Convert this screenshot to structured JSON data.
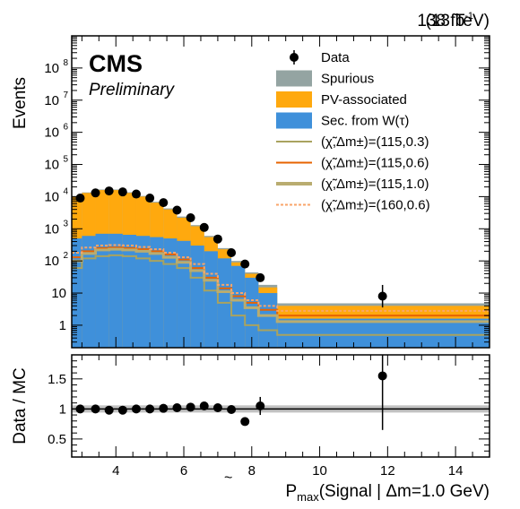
{
  "chart_data": [
    {
      "type": "histogram",
      "panel": "main",
      "header": {
        "lumi": "138 fb",
        "lumi_sup": "-1",
        "energy": "(13 TeV)",
        "experiment": "CMS",
        "status": "Preliminary"
      },
      "ylabel": "Events",
      "yscale": "log",
      "ylim": [
        0.2,
        1000000000
      ],
      "xlim": [
        2.7,
        15
      ],
      "y_ticks": [
        {
          "value": 1,
          "label": "1"
        },
        {
          "value": 10,
          "label": "10"
        },
        {
          "value": 100,
          "label": "10",
          "sup": "2"
        },
        {
          "value": 1000,
          "label": "10",
          "sup": "3"
        },
        {
          "value": 10000,
          "label": "10",
          "sup": "4"
        },
        {
          "value": 100000,
          "label": "10",
          "sup": "5"
        },
        {
          "value": 1000000,
          "label": "10",
          "sup": "6"
        },
        {
          "value": 10000000,
          "label": "10",
          "sup": "7"
        },
        {
          "value": 100000000,
          "label": "10",
          "sup": "8"
        }
      ],
      "bin_edges": [
        2.7,
        3.0,
        3.4,
        3.8,
        4.2,
        4.6,
        5.0,
        5.4,
        5.8,
        6.2,
        6.6,
        7.0,
        7.4,
        7.8,
        8.2,
        8.75,
        15
      ],
      "stack": [
        {
          "name": "Sec. from W(τ)",
          "color": "#3f90da",
          "values": [
            500,
            600,
            700,
            700,
            650,
            600,
            550,
            500,
            420,
            300,
            200,
            120,
            70,
            30,
            10,
            1.6
          ]
        },
        {
          "name": "PV-associated",
          "color": "#ffa90e",
          "values": [
            10000,
            13000,
            16000,
            16000,
            13000,
            10000,
            6500,
            4000,
            2200,
            1200,
            550,
            230,
            90,
            40,
            15,
            4.0
          ]
        },
        {
          "name": "Spurious",
          "color": "#94a4a2",
          "values": [
            10400,
            13500,
            16600,
            16600,
            13600,
            10500,
            6900,
            4300,
            2400,
            1300,
            600,
            250,
            100,
            44,
            18,
            4.8
          ]
        }
      ],
      "signals": [
        {
          "name": "(χ̃,Δm±)=(115,0.3)",
          "color": "#a9a35f",
          "style": "solid",
          "values": [
            60,
            120,
            140,
            150,
            140,
            120,
            100,
            80,
            60,
            30,
            12,
            5,
            2,
            1,
            0.7,
            0.5
          ]
        },
        {
          "name": "(χ̃,Δm±)=(115,0.6)",
          "color": "#e76300",
          "style": "solid",
          "values": [
            130,
            200,
            250,
            260,
            250,
            230,
            200,
            160,
            110,
            60,
            30,
            14,
            8,
            5,
            3,
            2.0
          ]
        },
        {
          "name": "(χ̃,Δm±)=(115,1.0)",
          "color": "#b9ac70",
          "style": "thick",
          "values": [
            100,
            170,
            220,
            230,
            220,
            200,
            170,
            130,
            90,
            50,
            25,
            11,
            6,
            3.5,
            2,
            1.3
          ]
        },
        {
          "name": "(χ̃,Δm±)=(160,0.6)",
          "color": "#f9a56a",
          "style": "dashed",
          "values": [
            180,
            260,
            300,
            310,
            300,
            270,
            230,
            180,
            130,
            80,
            40,
            18,
            10,
            6,
            4,
            2.8
          ]
        }
      ],
      "data": {
        "name": "Data",
        "x": [
          2.95,
          3.4,
          3.8,
          4.2,
          4.6,
          5.0,
          5.4,
          5.8,
          6.2,
          6.6,
          7.0,
          7.4,
          7.8,
          8.25,
          11.85
        ],
        "y": [
          9000,
          13000,
          15000,
          14000,
          12000,
          9000,
          6500,
          3800,
          2200,
          1100,
          480,
          180,
          80,
          30,
          8
        ],
        "yerr": [
          0,
          0,
          0,
          0,
          0,
          0,
          0,
          0,
          0,
          0,
          0,
          0,
          0,
          0,
          0.35
        ]
      },
      "legend": [
        "Data",
        "Spurious",
        "PV-associated",
        "Sec. from W(τ)",
        "(χ̃,Δm±)=(115,0.3)",
        "(χ̃,Δm±)=(115,0.6)",
        "(χ̃,Δm±)=(115,1.0)",
        "(χ̃,Δm±)=(160,0.6)"
      ]
    },
    {
      "type": "ratio",
      "panel": "ratio",
      "ylabel": "Data / MC",
      "ylim": [
        0.2,
        1.9
      ],
      "xlim": [
        2.7,
        15
      ],
      "y_ticks": [
        {
          "value": 0.5,
          "label": "0.5"
        },
        {
          "value": 1,
          "label": "1"
        },
        {
          "value": 1.5,
          "label": "1.5"
        }
      ],
      "x_ticks": [
        {
          "value": 4,
          "label": "4"
        },
        {
          "value": 6,
          "label": "6"
        },
        {
          "value": 8,
          "label": "8"
        },
        {
          "value": 10,
          "label": "10"
        },
        {
          "value": 12,
          "label": "12"
        },
        {
          "value": 14,
          "label": "14"
        }
      ],
      "uncertainty_band": [
        1.06,
        0.94
      ],
      "points": {
        "x": [
          2.95,
          3.4,
          3.8,
          4.2,
          4.6,
          5.0,
          5.4,
          5.8,
          6.2,
          6.6,
          7.0,
          7.4,
          7.8,
          8.25,
          11.85
        ],
        "y": [
          1.0,
          1.0,
          0.98,
          0.98,
          1.0,
          1.0,
          1.01,
          1.02,
          1.03,
          1.05,
          1.02,
          0.99,
          0.79,
          1.05,
          1.55
        ],
        "yerr": [
          0,
          0,
          0,
          0,
          0,
          0,
          0,
          0,
          0,
          0,
          0,
          0,
          0.05,
          0.15,
          0.9
        ]
      },
      "xlabel": "(Signal | Δm=1.0 GeV)",
      "xlabel_symbol": "P",
      "xlabel_sub": "max"
    }
  ]
}
